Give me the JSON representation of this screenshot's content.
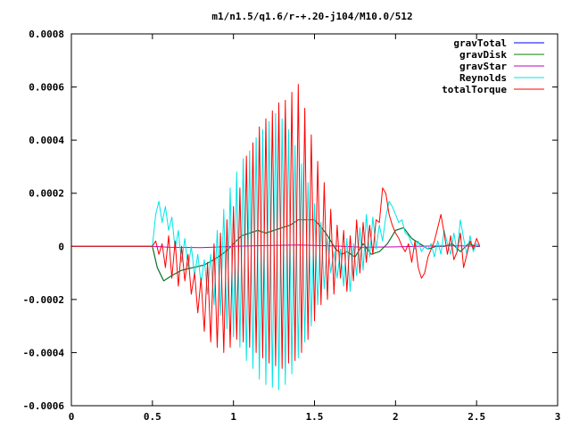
{
  "chart_data": {
    "type": "line",
    "title": "m1/n1.5/q1.6/r-+.20-j104/M10.0/512",
    "xlabel": "",
    "ylabel": "",
    "xlim": [
      0,
      3
    ],
    "ylim": [
      -0.0006,
      0.0008
    ],
    "xticks": [
      "0",
      "0.5",
      "1",
      "1.5",
      "2",
      "2.5",
      "3"
    ],
    "yticks": [
      "0.0008",
      "0.0006",
      "0.0004",
      "0.0002",
      "0",
      "-0.0002",
      "-0.0004",
      "-0.0006"
    ],
    "grid": false,
    "legend_position": "top-right",
    "series": [
      {
        "name": "gravTotal",
        "color": "#0000ff",
        "x": [
          0,
          0.5,
          0.53,
          0.57,
          0.62,
          0.68,
          0.75,
          0.82,
          0.88,
          0.93,
          0.97,
          1.0,
          1.05,
          1.1,
          1.15,
          1.2,
          1.25,
          1.3,
          1.35,
          1.4,
          1.45,
          1.5,
          1.53,
          1.57,
          1.6,
          1.63,
          1.67,
          1.7,
          1.75,
          1.8,
          1.85,
          1.9,
          1.95,
          2.0,
          2.05,
          2.1,
          2.15,
          2.2,
          2.25,
          2.3,
          2.35,
          2.4,
          2.45,
          2.5,
          2.52
        ],
        "y": [
          0,
          0,
          -8e-05,
          -0.00013,
          -0.00011,
          -9e-05,
          -8e-05,
          -7e-05,
          -5e-05,
          -3e-05,
          -1e-05,
          1e-05,
          4e-05,
          5e-05,
          6e-05,
          5e-05,
          6e-05,
          7e-05,
          8e-05,
          0.0001,
          0.0001,
          0.0001,
          8e-05,
          5e-05,
          2e-05,
          -1e-05,
          -3e-05,
          -2e-05,
          -4e-05,
          1e-05,
          -3e-05,
          -2e-05,
          1e-05,
          6e-05,
          7e-05,
          3e-05,
          1e-05,
          -1e-05,
          0.0,
          0.0,
          1e-05,
          -2e-05,
          1e-05,
          0.0,
          0.0
        ]
      },
      {
        "name": "gravDisk",
        "color": "#008000",
        "x": [
          0,
          0.5,
          0.53,
          0.57,
          0.62,
          0.68,
          0.75,
          0.82,
          0.88,
          0.93,
          0.97,
          1.0,
          1.05,
          1.1,
          1.15,
          1.2,
          1.25,
          1.3,
          1.35,
          1.4,
          1.45,
          1.5,
          1.53,
          1.57,
          1.6,
          1.63,
          1.67,
          1.7,
          1.75,
          1.8,
          1.85,
          1.9,
          1.95,
          2.0,
          2.05,
          2.1,
          2.15,
          2.2,
          2.25,
          2.3,
          2.35,
          2.4,
          2.45,
          2.5,
          2.52
        ],
        "y": [
          0,
          0,
          -8e-05,
          -0.00013,
          -0.00011,
          -9e-05,
          -8e-05,
          -7e-05,
          -5e-05,
          -3e-05,
          -1e-05,
          1e-05,
          4e-05,
          5e-05,
          6e-05,
          5e-05,
          6e-05,
          7e-05,
          8e-05,
          0.0001,
          0.0001,
          0.0001,
          8e-05,
          5e-05,
          2e-05,
          -1e-05,
          -3e-05,
          -2e-05,
          -4e-05,
          1e-05,
          -3e-05,
          -2e-05,
          1e-05,
          6e-05,
          7e-05,
          3e-05,
          1e-05,
          -1e-05,
          0.0,
          0.0,
          1e-05,
          -2e-05,
          1e-05,
          0.0,
          0.0
        ]
      },
      {
        "name": "gravStar",
        "color": "#c000c0",
        "x": [
          0,
          0.5,
          0.6,
          0.8,
          1.0,
          1.2,
          1.4,
          1.6,
          1.8,
          2.0,
          2.2,
          2.4,
          2.52
        ],
        "y": [
          0,
          0,
          -3e-06,
          -5e-06,
          0.0,
          3e-06,
          5e-06,
          2e-06,
          -3e-06,
          -2e-06,
          1e-06,
          2e-06,
          0.0
        ]
      },
      {
        "name": "Reynolds",
        "color": "#00e5e5",
        "x": [
          0,
          0.5,
          0.52,
          0.54,
          0.56,
          0.58,
          0.6,
          0.62,
          0.64,
          0.66,
          0.68,
          0.7,
          0.72,
          0.74,
          0.76,
          0.78,
          0.8,
          0.82,
          0.84,
          0.86,
          0.88,
          0.9,
          0.92,
          0.94,
          0.96,
          0.98,
          1.0,
          1.02,
          1.04,
          1.06,
          1.08,
          1.1,
          1.12,
          1.14,
          1.16,
          1.18,
          1.2,
          1.22,
          1.24,
          1.26,
          1.28,
          1.3,
          1.32,
          1.34,
          1.36,
          1.38,
          1.4,
          1.42,
          1.44,
          1.46,
          1.48,
          1.5,
          1.52,
          1.54,
          1.56,
          1.58,
          1.6,
          1.62,
          1.64,
          1.66,
          1.68,
          1.7,
          1.72,
          1.74,
          1.76,
          1.78,
          1.8,
          1.82,
          1.84,
          1.86,
          1.88,
          1.9,
          1.92,
          1.94,
          1.96,
          1.98,
          2.0,
          2.02,
          2.04,
          2.06,
          2.08,
          2.1,
          2.12,
          2.14,
          2.16,
          2.18,
          2.2,
          2.22,
          2.24,
          2.26,
          2.28,
          2.3,
          2.32,
          2.34,
          2.36,
          2.38,
          2.4,
          2.42,
          2.44,
          2.46,
          2.48,
          2.5,
          2.52
        ],
        "y": [
          0,
          0,
          0.00012,
          0.00017,
          9e-05,
          0.00015,
          6e-05,
          0.00011,
          -1e-05,
          6e-05,
          -6e-05,
          3e-05,
          -8e-05,
          0.0,
          -0.00011,
          -3e-05,
          -0.00014,
          -5e-05,
          -0.00018,
          -3e-05,
          -0.00022,
          6e-05,
          -0.00026,
          0.00014,
          -0.00031,
          0.00022,
          -0.00034,
          0.00028,
          -0.00038,
          0.00033,
          -0.00043,
          0.00036,
          -0.00046,
          0.00041,
          -0.0005,
          0.00044,
          -0.00052,
          0.00047,
          -0.00053,
          0.0005,
          -0.00054,
          0.00048,
          -0.00052,
          0.00044,
          -0.00048,
          0.00038,
          -0.00042,
          0.00031,
          -0.00036,
          0.00024,
          -0.0003,
          0.00016,
          -0.00022,
          9e-05,
          -0.00016,
          3e-05,
          -0.0001,
          -2e-05,
          -0.00012,
          -1e-05,
          -0.00015,
          3e-05,
          -0.00017,
          1e-05,
          -0.00011,
          7e-05,
          -9e-05,
          0.00012,
          -4e-05,
          0.00011,
          -1e-05,
          8e-05,
          2e-05,
          0.00011,
          0.00017,
          0.00015,
          0.00012,
          9e-05,
          0.0001,
          5e-05,
          4e-05,
          1e-05,
          -1e-05,
          2e-05,
          -2e-05,
          0.0,
          -1e-05,
          1e-05,
          -4e-05,
          2e-05,
          -3e-05,
          6e-05,
          1e-05,
          -3e-05,
          5e-05,
          -2e-05,
          0.0001,
          3e-05,
          -3e-05,
          4e-05,
          -2e-05,
          1e-05,
          0.0
        ]
      },
      {
        "name": "totalTorque",
        "color": "#ff0000",
        "x": [
          0,
          0.5,
          0.52,
          0.54,
          0.56,
          0.58,
          0.6,
          0.62,
          0.64,
          0.66,
          0.68,
          0.7,
          0.72,
          0.74,
          0.76,
          0.78,
          0.8,
          0.82,
          0.84,
          0.86,
          0.88,
          0.9,
          0.92,
          0.94,
          0.96,
          0.98,
          1.0,
          1.02,
          1.04,
          1.06,
          1.08,
          1.1,
          1.12,
          1.14,
          1.16,
          1.18,
          1.2,
          1.22,
          1.24,
          1.26,
          1.28,
          1.3,
          1.32,
          1.34,
          1.36,
          1.38,
          1.4,
          1.42,
          1.44,
          1.46,
          1.48,
          1.5,
          1.52,
          1.54,
          1.56,
          1.58,
          1.6,
          1.62,
          1.64,
          1.66,
          1.68,
          1.7,
          1.72,
          1.74,
          1.76,
          1.78,
          1.8,
          1.82,
          1.84,
          1.86,
          1.88,
          1.9,
          1.92,
          1.94,
          1.96,
          1.98,
          2.0,
          2.02,
          2.04,
          2.06,
          2.08,
          2.1,
          2.12,
          2.14,
          2.16,
          2.18,
          2.2,
          2.22,
          2.24,
          2.26,
          2.28,
          2.3,
          2.32,
          2.34,
          2.36,
          2.38,
          2.4,
          2.42,
          2.44,
          2.46,
          2.48,
          2.5,
          2.52
        ],
        "y": [
          0,
          0,
          2e-05,
          -3e-05,
          1e-05,
          -8e-05,
          4e-05,
          -0.00012,
          2e-05,
          -0.00015,
          0.0,
          -0.00013,
          -3e-05,
          -0.00018,
          -0.0001,
          -0.00025,
          -0.00012,
          -0.00032,
          -6e-05,
          -0.00036,
          1e-05,
          -0.00038,
          5e-05,
          -0.0004,
          0.0001,
          -0.00038,
          0.00015,
          -0.00035,
          0.00022,
          -0.00036,
          0.00034,
          -0.00038,
          0.00039,
          -0.0004,
          0.00045,
          -0.00042,
          0.00048,
          -0.00044,
          0.00051,
          -0.00045,
          0.00054,
          -0.00046,
          0.00055,
          -0.00044,
          0.00058,
          -0.00043,
          0.00061,
          -0.0004,
          0.00052,
          -0.00035,
          0.00042,
          -0.00028,
          0.00032,
          -0.00022,
          0.00024,
          -0.0002,
          0.00014,
          -0.00018,
          8e-05,
          -0.00012,
          6e-05,
          -0.00017,
          4e-05,
          -0.00013,
          0.0001,
          -0.0001,
          9e-05,
          -6e-05,
          8e-05,
          -3e-05,
          0.0001,
          9e-05,
          0.00022,
          0.0002,
          0.00012,
          8e-05,
          5e-05,
          3e-05,
          0.0,
          -2e-05,
          1e-05,
          -6e-05,
          2e-05,
          -8e-05,
          -0.00012,
          -0.0001,
          -4e-05,
          -1e-05,
          2e-05,
          7e-05,
          0.00012,
          5e-05,
          -3e-05,
          4e-05,
          -5e-05,
          -2e-05,
          5e-05,
          -8e-05,
          -3e-05,
          2e-05,
          -1e-05,
          3e-05,
          0.0
        ]
      }
    ]
  }
}
